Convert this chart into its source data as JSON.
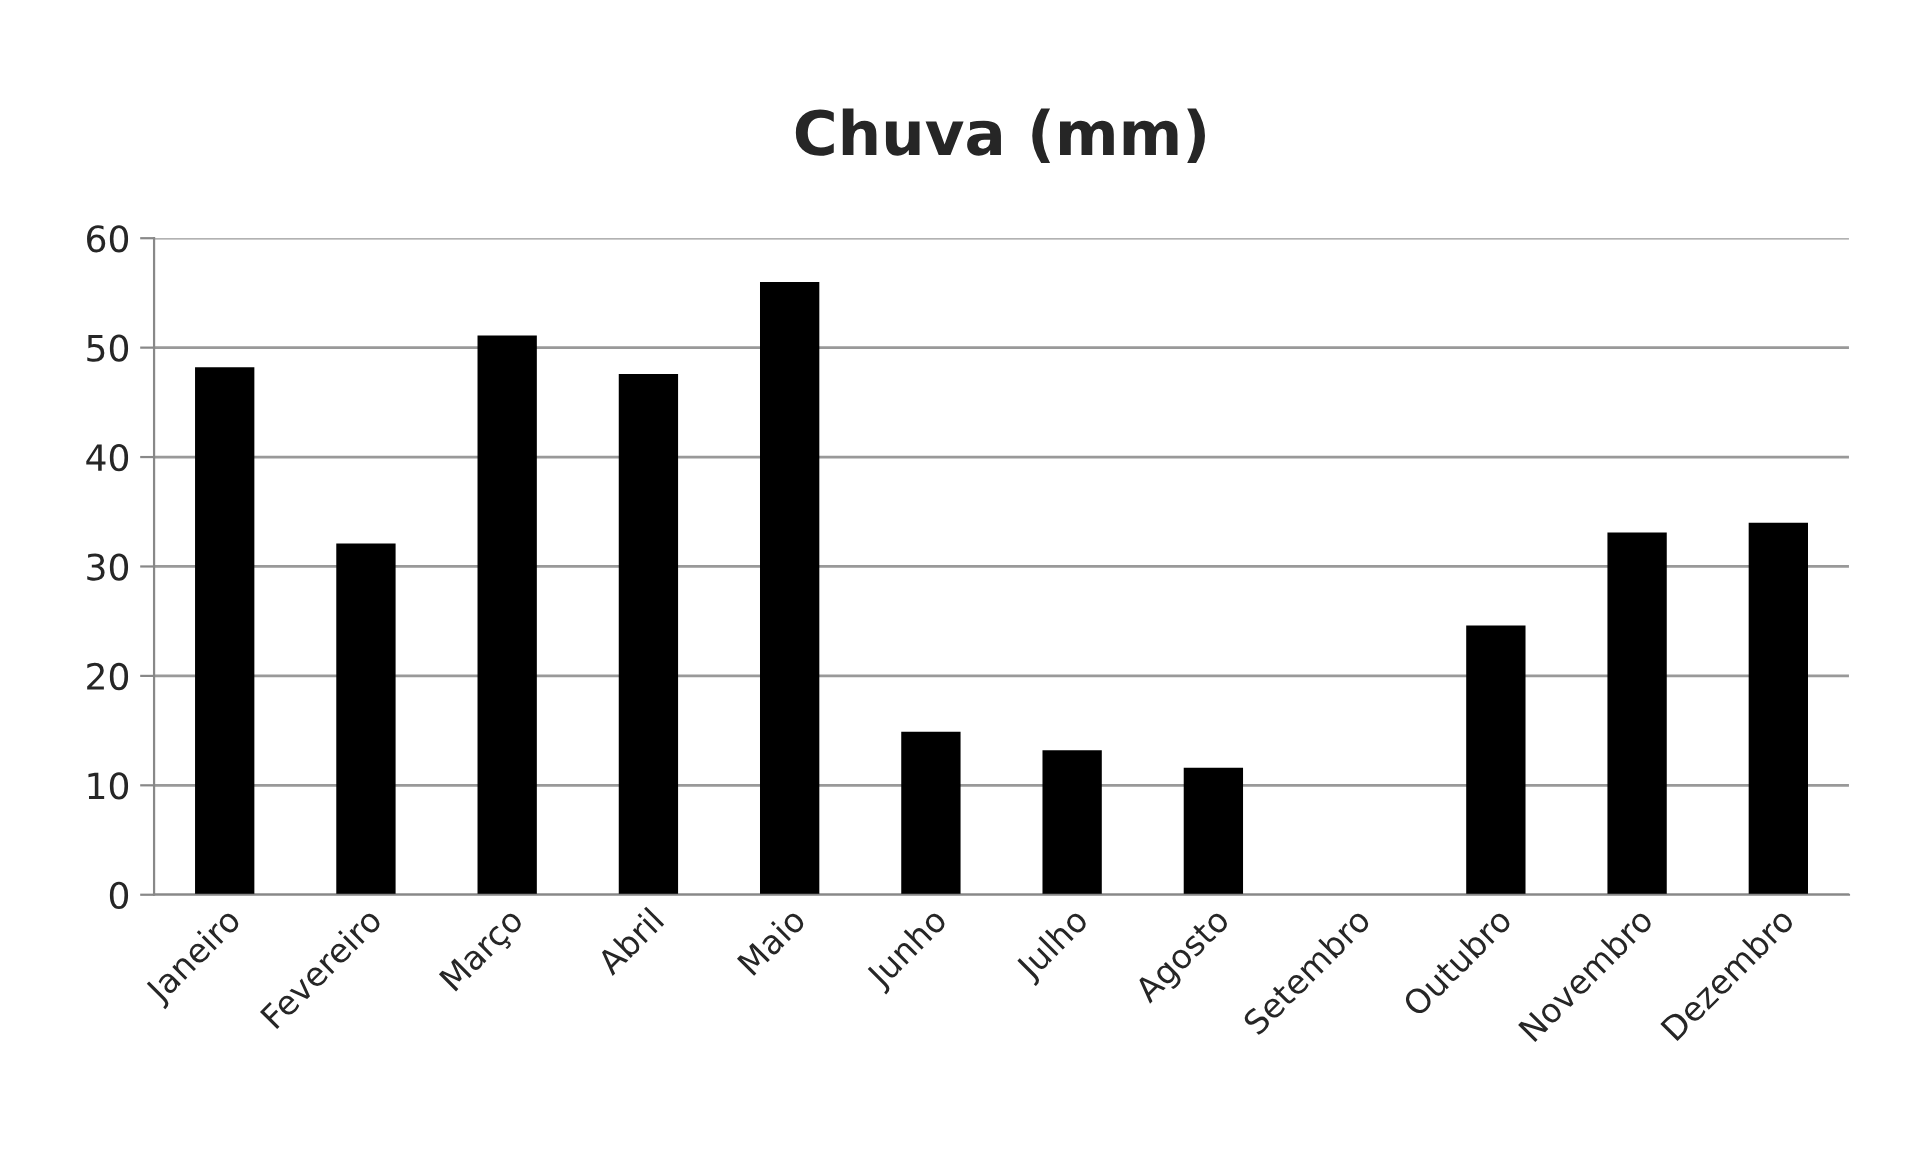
{
  "chart_data": {
    "type": "bar",
    "title": "Chuva (mm)",
    "categories": [
      "Janeiro",
      "Fevereiro",
      "Março",
      "Abril",
      "Maio",
      "Junho",
      "Julho",
      "Agosto",
      "Setembro",
      "Outubro",
      "Novembro",
      "Dezembro"
    ],
    "values": [
      48.2,
      32.1,
      51.1,
      47.6,
      56.0,
      14.9,
      13.2,
      11.6,
      0,
      24.6,
      33.1,
      34.0
    ],
    "color": "#000000",
    "ylim": [
      0,
      60
    ],
    "yticks": [
      0,
      10,
      20,
      30,
      40,
      50,
      60
    ],
    "grid": "y"
  }
}
